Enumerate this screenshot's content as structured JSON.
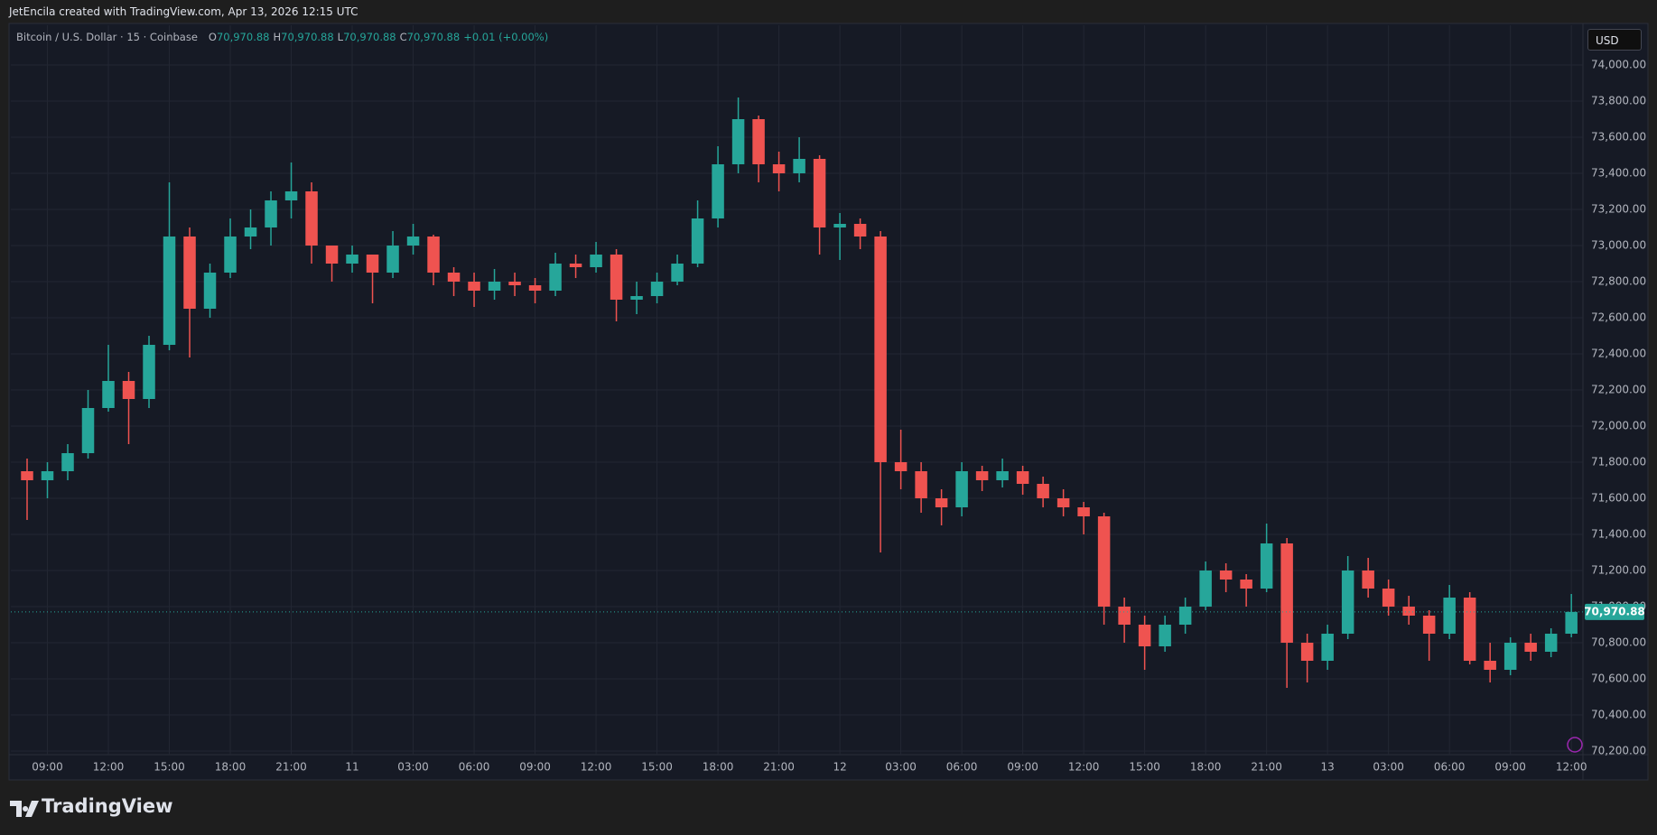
{
  "attribution": "JetEncila created with TradingView.com, Apr 13, 2026 12:15 UTC",
  "brand": "TradingView",
  "currency": "USD",
  "chart_data": {
    "type": "candlestick",
    "legend": {
      "symbol": "Bitcoin / U.S. Dollar · 15 · Coinbase",
      "open_label": "O",
      "open": "70,970.88",
      "high_label": "H",
      "high": "70,970.88",
      "low_label": "L",
      "low": "70,970.88",
      "close_label": "C",
      "close": "70,970.88",
      "change": "+0.01 (+0.00%)"
    },
    "up_color": "#26a69a",
    "down_color": "#ef5350",
    "grid": true,
    "x": [
      8,
      9,
      10,
      11,
      12,
      13,
      14,
      15,
      16,
      17,
      18,
      19,
      20,
      21,
      22,
      23,
      24,
      25,
      26,
      27,
      28,
      29,
      30,
      31,
      32,
      33,
      34,
      35,
      36,
      37,
      38,
      39,
      40,
      41,
      42,
      43,
      44,
      45,
      46,
      47,
      48,
      49,
      50,
      51,
      52,
      53,
      54,
      55,
      56,
      57,
      58,
      59,
      60,
      61,
      62,
      63,
      64,
      65,
      66,
      67,
      68,
      69,
      70,
      71,
      72,
      73,
      74,
      75,
      76,
      77,
      78,
      79,
      80,
      81,
      82,
      83,
      84
    ],
    "open": [
      71750,
      71700,
      71750,
      71850,
      72100,
      72250,
      72150,
      72450,
      73050,
      72650,
      72850,
      73050,
      73100,
      73250,
      73300,
      73000,
      72900,
      72950,
      72850,
      73000,
      73050,
      72850,
      72800,
      72750,
      72800,
      72780,
      72750,
      72900,
      72880,
      72950,
      72700,
      72720,
      72800,
      72900,
      73150,
      73450,
      73700,
      73450,
      73400,
      73480,
      73100,
      73120,
      73050,
      71800,
      71750,
      71600,
      71550,
      71750,
      71700,
      71750,
      71680,
      71600,
      71550,
      71500,
      71000,
      70900,
      70780,
      70900,
      71000,
      71200,
      71150,
      71100,
      71350,
      70800,
      70700,
      70850,
      71200,
      71100,
      71000,
      70950,
      70850,
      71050,
      70700,
      70650,
      70800,
      70750,
      70850
    ],
    "high": [
      71820,
      71800,
      71900,
      72200,
      72450,
      72300,
      72500,
      73350,
      73100,
      72900,
      73150,
      73200,
      73300,
      73460,
      73350,
      73000,
      73000,
      72950,
      73080,
      73120,
      73060,
      72880,
      72850,
      72870,
      72850,
      72820,
      72960,
      72950,
      73020,
      72980,
      72800,
      72850,
      72950,
      73250,
      73550,
      73820,
      73720,
      73520,
      73600,
      73500,
      73180,
      73150,
      73080,
      71980,
      71800,
      71650,
      71800,
      71780,
      71820,
      71780,
      71720,
      71650,
      71580,
      71520,
      71050,
      70950,
      70950,
      71050,
      71250,
      71240,
      71180,
      71460,
      71380,
      70850,
      70900,
      71280,
      71270,
      71150,
      71060,
      70980,
      71120,
      71080,
      70800,
      70830,
      70850,
      70880,
      71070
    ],
    "low": [
      71480,
      71600,
      71700,
      71820,
      72080,
      71900,
      72100,
      72420,
      72380,
      72600,
      72820,
      72980,
      73000,
      73150,
      72900,
      72800,
      72850,
      72680,
      72820,
      72950,
      72780,
      72720,
      72660,
      72700,
      72720,
      72680,
      72720,
      72820,
      72850,
      72580,
      72620,
      72680,
      72780,
      72880,
      73100,
      73400,
      73350,
      73300,
      73350,
      72950,
      72920,
      72980,
      71300,
      71650,
      71520,
      71450,
      71500,
      71640,
      71660,
      71620,
      71550,
      71500,
      71400,
      70900,
      70800,
      70650,
      70750,
      70850,
      70980,
      71080,
      71000,
      71080,
      70550,
      70580,
      70650,
      70820,
      71050,
      70950,
      70900,
      70700,
      70820,
      70680,
      70580,
      70620,
      70700,
      70720,
      70830
    ],
    "close": [
      71700,
      71750,
      71850,
      72100,
      72250,
      72150,
      72450,
      73050,
      72650,
      72850,
      73050,
      73100,
      73250,
      73300,
      73000,
      72900,
      72950,
      72850,
      73000,
      73050,
      72850,
      72800,
      72750,
      72800,
      72780,
      72750,
      72900,
      72880,
      72950,
      72700,
      72720,
      72800,
      72900,
      73150,
      73450,
      73700,
      73450,
      73400,
      73480,
      73100,
      73120,
      73050,
      71800,
      71750,
      71600,
      71550,
      71750,
      71700,
      71750,
      71680,
      71600,
      71550,
      71500,
      71000,
      70900,
      70780,
      70900,
      71000,
      71200,
      71150,
      71100,
      71350,
      70800,
      70700,
      70850,
      71200,
      71100,
      71000,
      70950,
      70850,
      71050,
      70700,
      70650,
      70800,
      70750,
      70850,
      70970.88
    ],
    "last_price": {
      "value": 70970.88,
      "label": "70,970.88"
    },
    "xlim": [
      7.2,
      84.57
    ],
    "xticks": [
      {
        "value": 9,
        "label": "09:00"
      },
      {
        "value": 12,
        "label": "12:00"
      },
      {
        "value": 15,
        "label": "15:00"
      },
      {
        "value": 18,
        "label": "18:00"
      },
      {
        "value": 21,
        "label": "21:00"
      },
      {
        "value": 24,
        "label": "11"
      },
      {
        "value": 27,
        "label": "03:00"
      },
      {
        "value": 30,
        "label": "06:00"
      },
      {
        "value": 33,
        "label": "09:00"
      },
      {
        "value": 36,
        "label": "12:00"
      },
      {
        "value": 39,
        "label": "15:00"
      },
      {
        "value": 42,
        "label": "18:00"
      },
      {
        "value": 45,
        "label": "21:00"
      },
      {
        "value": 48,
        "label": "12"
      },
      {
        "value": 51,
        "label": "03:00"
      },
      {
        "value": 54,
        "label": "06:00"
      },
      {
        "value": 57,
        "label": "09:00"
      },
      {
        "value": 60,
        "label": "12:00"
      },
      {
        "value": 63,
        "label": "15:00"
      },
      {
        "value": 66,
        "label": "18:00"
      },
      {
        "value": 69,
        "label": "21:00"
      },
      {
        "value": 72,
        "label": "13"
      },
      {
        "value": 75,
        "label": "03:00"
      },
      {
        "value": 78,
        "label": "06:00"
      },
      {
        "value": 81,
        "label": "09:00"
      },
      {
        "value": 84,
        "label": "12:00"
      }
    ],
    "ylim": [
      70180,
      74220
    ],
    "yticks": [
      {
        "value": 70200,
        "label": "70,200.00"
      },
      {
        "value": 70400,
        "label": "70,400.00"
      },
      {
        "value": 70600,
        "label": "70,600.00"
      },
      {
        "value": 70800,
        "label": "70,800.00"
      },
      {
        "value": 71000,
        "label": "71,000.00"
      },
      {
        "value": 71200,
        "label": "71,200.00"
      },
      {
        "value": 71400,
        "label": "71,400.00"
      },
      {
        "value": 71600,
        "label": "71,600.00"
      },
      {
        "value": 71800,
        "label": "71,800.00"
      },
      {
        "value": 72000,
        "label": "72,000.00"
      },
      {
        "value": 72200,
        "label": "72,200.00"
      },
      {
        "value": 72400,
        "label": "72,400.00"
      },
      {
        "value": 72600,
        "label": "72,600.00"
      },
      {
        "value": 72800,
        "label": "72,800.00"
      },
      {
        "value": 73000,
        "label": "73,000.00"
      },
      {
        "value": 73200,
        "label": "73,200.00"
      },
      {
        "value": 73400,
        "label": "73,400.00"
      },
      {
        "value": 73600,
        "label": "73,600.00"
      },
      {
        "value": 73800,
        "label": "73,800.00"
      },
      {
        "value": 74000,
        "label": "74,000.00"
      }
    ]
  }
}
